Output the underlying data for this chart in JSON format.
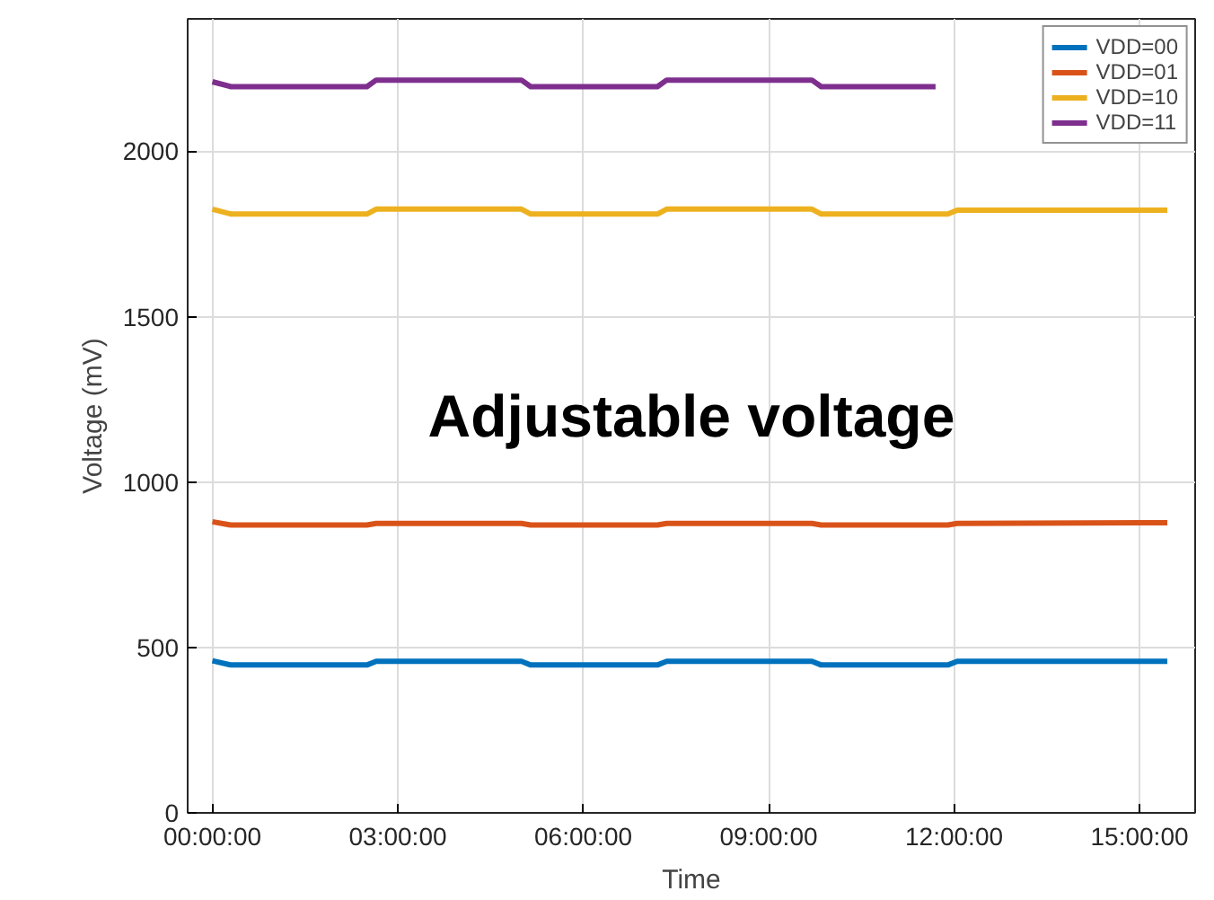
{
  "chart_data": {
    "type": "line",
    "xlabel": "Time",
    "ylabel": "Voltage (mV)",
    "x": [
      0,
      0.3,
      2.5,
      2.65,
      5.0,
      5.15,
      7.2,
      7.35,
      9.7,
      9.85,
      11.9,
      12.05,
      15.45
    ],
    "series": [
      {
        "name": "VDD=00",
        "color": "#0072bd",
        "values": [
          460,
          447,
          447,
          458,
          458,
          447,
          447,
          458,
          458,
          447,
          447,
          458,
          458
        ]
      },
      {
        "name": "VDD=01",
        "color": "#d95319",
        "values": [
          880,
          870,
          870,
          875,
          875,
          870,
          870,
          875,
          875,
          870,
          870,
          875,
          877
        ]
      },
      {
        "name": "VDD=10",
        "color": "#edb120",
        "values": [
          1825,
          1810,
          1810,
          1825,
          1825,
          1810,
          1810,
          1825,
          1825,
          1810,
          1810,
          1822,
          1822
        ]
      },
      {
        "name": "VDD=11",
        "color": "#7e2f8e",
        "x": [
          0,
          0.3,
          2.5,
          2.65,
          5.0,
          5.15,
          7.2,
          7.35,
          9.7,
          9.85,
          11.7
        ],
        "values": [
          2210,
          2195,
          2195,
          2215,
          2215,
          2195,
          2195,
          2215,
          2215,
          2195,
          2195
        ]
      }
    ],
    "xlim": [
      -0.4,
      15.9
    ],
    "ylim": [
      0,
      2400
    ],
    "xticks": [
      {
        "value": 0,
        "label": "00:00:00"
      },
      {
        "value": 3,
        "label": "03:00:00"
      },
      {
        "value": 6,
        "label": "06:00:00"
      },
      {
        "value": 9,
        "label": "09:00:00"
      },
      {
        "value": 12,
        "label": "12:00:00"
      },
      {
        "value": 15,
        "label": "15:00:00"
      }
    ],
    "yticks": [
      0,
      500,
      1000,
      1500,
      2000
    ],
    "grid": true,
    "legend": "top right",
    "marker": "none",
    "line_style": "solid",
    "annotations": [
      "Adjustable voltage"
    ]
  }
}
